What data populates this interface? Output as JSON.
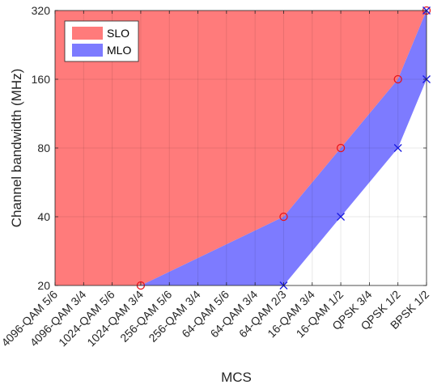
{
  "chart_data": {
    "type": "area",
    "xlabel": "MCS",
    "ylabel": "Channel bandwidth (MHz)",
    "categories": [
      "4096-QAM 5/6",
      "4096-QAM 3/4",
      "1024-QAM 5/6",
      "1024-QAM 3/4",
      "256-QAM 5/6",
      "256-QAM 3/4",
      "64-QAM 5/6",
      "64-QAM 3/4",
      "64-QAM 2/3",
      "16-QAM 3/4",
      "16-QAM 1/2",
      "QPSK 3/4",
      "QPSK 1/2",
      "BPSK 1/2"
    ],
    "yscale": "log2",
    "yticks": [
      20,
      40,
      80,
      160,
      320
    ],
    "ylim": [
      20,
      320
    ],
    "grid": true,
    "legend_position": "top-left",
    "series": [
      {
        "name": "SLO",
        "color": "#ff7b7b",
        "marker": "circle",
        "points": [
          {
            "category": "1024-QAM 3/4",
            "value": 20
          },
          {
            "category": "64-QAM 2/3",
            "value": 40
          },
          {
            "category": "16-QAM 1/2",
            "value": 80
          },
          {
            "category": "QPSK 1/2",
            "value": 160
          },
          {
            "category": "BPSK 1/2",
            "value": 320
          }
        ]
      },
      {
        "name": "MLO",
        "color": "#7d7bff",
        "marker": "x",
        "points": [
          {
            "category": "64-QAM 2/3",
            "value": 20
          },
          {
            "category": "16-QAM 1/2",
            "value": 40
          },
          {
            "category": "QPSK 1/2",
            "value": 80
          },
          {
            "category": "BPSK 1/2",
            "value": 160
          },
          {
            "category": "BPSK 1/2",
            "value": 320
          }
        ]
      }
    ],
    "marker_colors": {
      "circle": "#e8141c",
      "x": "#1a1ae0"
    },
    "grid_color": "#dedede",
    "axis_color": "#262626"
  }
}
